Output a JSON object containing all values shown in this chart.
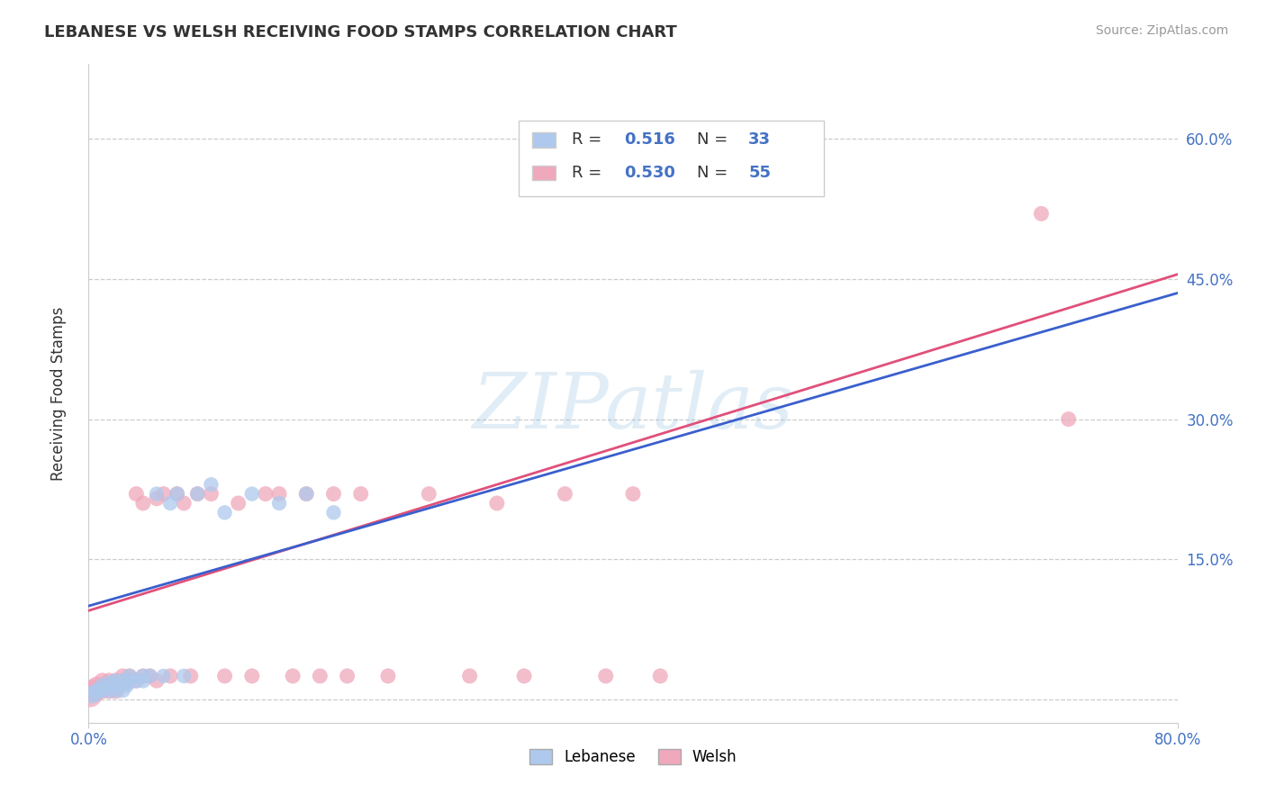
{
  "title": "LEBANESE VS WELSH RECEIVING FOOD STAMPS CORRELATION CHART",
  "source": "Source: ZipAtlas.com",
  "ylabel": "Receiving Food Stamps",
  "xlim": [
    0,
    0.8
  ],
  "ylim": [
    -0.025,
    0.68
  ],
  "x_ticks": [
    0.0,
    0.8
  ],
  "x_tick_labels": [
    "0.0%",
    "80.0%"
  ],
  "y_ticks": [
    0.0,
    0.15,
    0.3,
    0.45,
    0.6
  ],
  "y_tick_labels_right": [
    "",
    "15.0%",
    "30.0%",
    "45.0%",
    "60.0%"
  ],
  "watermark": "ZIPatlas",
  "legend_R_lebanese": "0.516",
  "legend_N_lebanese": "33",
  "legend_R_welsh": "0.530",
  "legend_N_welsh": "55",
  "lebanese_color": "#aec9ed",
  "welsh_color": "#f0a8bc",
  "line_lebanese_color": "#3a5fcd",
  "line_welsh_color": "#e0507a",
  "background_color": "#ffffff",
  "lebanese_x": [
    0.003,
    0.005,
    0.008,
    0.01,
    0.01,
    0.012,
    0.015,
    0.015,
    0.018,
    0.02,
    0.02,
    0.022,
    0.025,
    0.025,
    0.028,
    0.03,
    0.03,
    0.035,
    0.04,
    0.04,
    0.045,
    0.05,
    0.055,
    0.06,
    0.065,
    0.07,
    0.08,
    0.09,
    0.1,
    0.12,
    0.14,
    0.16,
    0.18
  ],
  "lebanese_y": [
    0.005,
    0.008,
    0.01,
    0.01,
    0.015,
    0.012,
    0.01,
    0.018,
    0.015,
    0.01,
    0.02,
    0.015,
    0.01,
    0.02,
    0.015,
    0.02,
    0.025,
    0.02,
    0.02,
    0.025,
    0.025,
    0.22,
    0.025,
    0.21,
    0.22,
    0.025,
    0.22,
    0.23,
    0.2,
    0.22,
    0.21,
    0.22,
    0.2
  ],
  "welsh_x": [
    0.001,
    0.003,
    0.005,
    0.006,
    0.008,
    0.01,
    0.01,
    0.012,
    0.015,
    0.015,
    0.018,
    0.02,
    0.02,
    0.022,
    0.025,
    0.025,
    0.028,
    0.03,
    0.03,
    0.035,
    0.035,
    0.04,
    0.04,
    0.045,
    0.05,
    0.05,
    0.055,
    0.06,
    0.065,
    0.07,
    0.075,
    0.08,
    0.09,
    0.1,
    0.11,
    0.12,
    0.13,
    0.14,
    0.15,
    0.16,
    0.17,
    0.18,
    0.19,
    0.2,
    0.22,
    0.25,
    0.28,
    0.3,
    0.32,
    0.35,
    0.38,
    0.4,
    0.42,
    0.7,
    0.72
  ],
  "welsh_y": [
    0.005,
    0.01,
    0.008,
    0.015,
    0.01,
    0.01,
    0.02,
    0.015,
    0.01,
    0.02,
    0.015,
    0.01,
    0.02,
    0.015,
    0.02,
    0.025,
    0.018,
    0.02,
    0.025,
    0.02,
    0.22,
    0.025,
    0.21,
    0.025,
    0.02,
    0.215,
    0.22,
    0.025,
    0.22,
    0.21,
    0.025,
    0.22,
    0.22,
    0.025,
    0.21,
    0.025,
    0.22,
    0.22,
    0.025,
    0.22,
    0.025,
    0.22,
    0.025,
    0.22,
    0.025,
    0.22,
    0.025,
    0.21,
    0.025,
    0.22,
    0.025,
    0.22,
    0.025,
    0.52,
    0.3
  ],
  "lebanese_sizes": [
    200,
    180,
    150,
    160,
    140,
    150,
    160,
    140,
    150,
    160,
    140,
    150,
    160,
    140,
    150,
    160,
    140,
    150,
    150,
    140,
    140,
    140,
    140,
    140,
    140,
    140,
    140,
    140,
    140,
    140,
    140,
    140,
    140
  ],
  "welsh_sizes": [
    400,
    300,
    250,
    200,
    180,
    200,
    160,
    180,
    200,
    160,
    180,
    200,
    160,
    180,
    160,
    150,
    160,
    160,
    150,
    150,
    150,
    150,
    150,
    150,
    150,
    150,
    150,
    150,
    150,
    150,
    150,
    150,
    150,
    150,
    150,
    150,
    150,
    150,
    150,
    150,
    150,
    150,
    150,
    150,
    150,
    150,
    150,
    150,
    150,
    150,
    150,
    150,
    150,
    150,
    150
  ]
}
